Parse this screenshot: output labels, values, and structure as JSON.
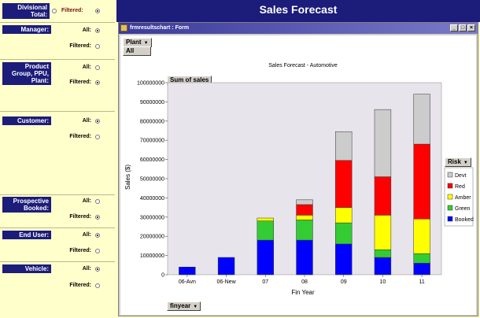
{
  "header": {
    "title": "Sales Forecast"
  },
  "filters": {
    "divisional": {
      "label": "Divisional Total:",
      "filtered_label": "Filtered:"
    },
    "manager": {
      "label": "Manager:",
      "all_label": "All:",
      "filtered_label": "Filtered:"
    },
    "product": {
      "label": "Product Group, PPU, Plant:",
      "all_label": "All:",
      "filtered_label": "Filtered:"
    },
    "customer": {
      "label": "Customer:",
      "all_label": "All:",
      "filtered_label": "Filtered:"
    },
    "prospective": {
      "label": "Prospective Booked:",
      "all_label": "All:",
      "filtered_label": "Filtered:"
    },
    "enduser": {
      "label": "End User:",
      "all_label": "All:",
      "filtered_label": "Filtered:"
    },
    "vehicle": {
      "label": "Vehicle:",
      "all_label": "All:",
      "filtered_label": "Filtered:"
    }
  },
  "window": {
    "title": "frmresultschart : Form",
    "plant_field": "Plant",
    "plant_value": "All",
    "data_field": "Sum of sales",
    "category_field": "finyear",
    "series_field": "Risk"
  },
  "chart_data": {
    "type": "bar",
    "stacked": true,
    "title": "Sales Forecast - Automotive",
    "xlabel": "Fin Year",
    "ylabel": "Sales ($)",
    "ylim": [
      0,
      100000000
    ],
    "yticks": [
      "0",
      "10000000",
      "20000000",
      "30000000",
      "40000000",
      "50000000",
      "60000000",
      "70000000",
      "80000000",
      "90000000",
      "100000000"
    ],
    "categories": [
      "06-Avn",
      "06-New",
      "07",
      "08",
      "09",
      "10",
      "11"
    ],
    "legend_position": "right",
    "grid": false,
    "series": [
      {
        "name": "Booked",
        "color": "#0000ff",
        "values": [
          4000000,
          9000000,
          18000000,
          18000000,
          16000000,
          9000000,
          6000000
        ]
      },
      {
        "name": "Green",
        "color": "#33cc33",
        "values": [
          0,
          0,
          10000000,
          10500000,
          11000000,
          4000000,
          5000000
        ]
      },
      {
        "name": "Amber",
        "color": "#ffff00",
        "values": [
          0,
          0,
          1500000,
          2500000,
          8000000,
          18000000,
          18000000
        ]
      },
      {
        "name": "Red",
        "color": "#ff0000",
        "values": [
          0,
          0,
          0,
          5500000,
          24500000,
          20000000,
          39000000
        ]
      },
      {
        "name": "Devt",
        "color": "#cccccc",
        "values": [
          0,
          0,
          0,
          2500000,
          15000000,
          35000000,
          26000000
        ]
      }
    ],
    "legend_order": [
      "Devt",
      "Red",
      "Amber",
      "Green",
      "Booked"
    ]
  }
}
